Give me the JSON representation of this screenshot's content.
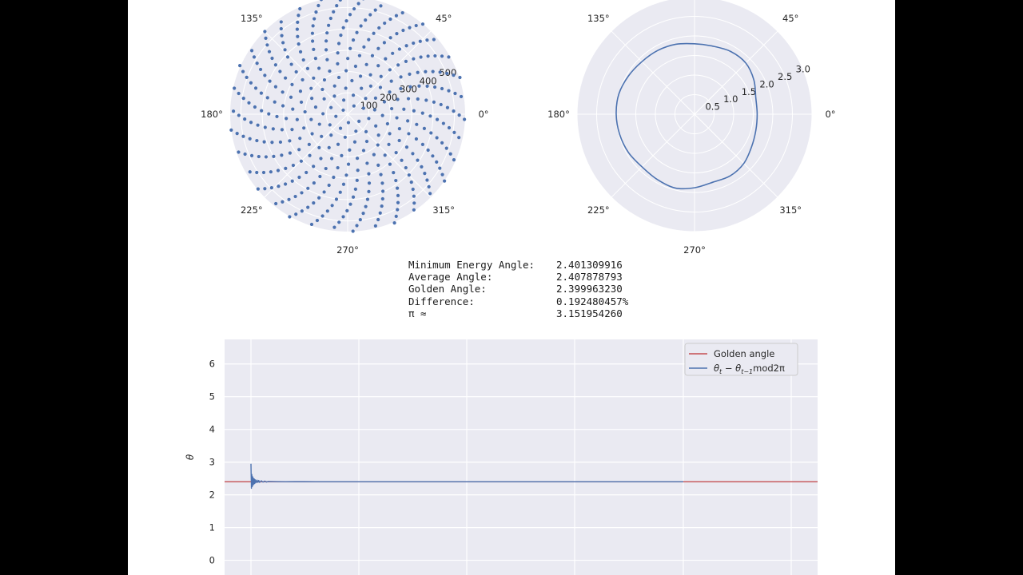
{
  "chart_data": [
    {
      "type": "scatter",
      "projection": "polar",
      "theta_tick_labels": [
        "0°",
        "45°",
        "90°",
        "135°",
        "180°",
        "225°",
        "270°",
        "315°"
      ],
      "r_tick_labels": [
        "100",
        "200",
        "300",
        "400",
        "500"
      ],
      "r_ticks": [
        100,
        200,
        300,
        400,
        500
      ],
      "rlim": [
        0,
        550
      ],
      "point_count": 392,
      "angle_step_rad": 2.401309916,
      "radius_rule": "r ≈ 28·sqrt(n), n = 1…392 (sunflower spiral)",
      "color": "#4c72b0",
      "grid": true,
      "background": "#eaeaf2"
    },
    {
      "type": "line",
      "projection": "polar",
      "theta_tick_labels": [
        "0°",
        "45°",
        "90°",
        "135°",
        "180°",
        "225°",
        "270°",
        "315°"
      ],
      "r_tick_labels": [
        "0.5",
        "1.0",
        "1.5",
        "2.0",
        "2.5",
        "3.0"
      ],
      "r_ticks": [
        0.5,
        1.0,
        1.5,
        2.0,
        2.5,
        3.0
      ],
      "rlim": [
        0,
        3.0
      ],
      "curve_theta_deg": [
        0,
        15,
        30,
        45,
        60,
        75,
        90,
        105,
        120,
        135,
        150,
        165,
        180,
        195,
        210,
        225,
        240,
        255,
        270,
        285,
        300,
        315,
        330,
        345,
        360
      ],
      "curve_r": [
        1.6,
        1.62,
        1.75,
        1.85,
        1.85,
        1.8,
        1.8,
        1.85,
        1.88,
        1.9,
        1.95,
        2.0,
        2.0,
        1.98,
        1.95,
        1.9,
        1.92,
        1.95,
        1.88,
        1.8,
        1.82,
        1.78,
        1.68,
        1.62,
        1.6
      ],
      "color": "#4c72b0",
      "grid": true,
      "background": "#eaeaf2"
    },
    {
      "type": "line",
      "ylabel": "θ",
      "ylim": [
        -0.45,
        6.75
      ],
      "y_ticks": [
        0,
        1,
        2,
        3,
        4,
        5,
        6
      ],
      "y_tick_labels": [
        "0",
        "1",
        "2",
        "3",
        "4",
        "5",
        "6"
      ],
      "legend": "top-right",
      "grid": true,
      "background": "#eaeaf2",
      "series": [
        {
          "name": "Golden angle",
          "color": "#c44e52",
          "kind": "horizontal",
          "y": 2.39996323
        },
        {
          "name": "θt − θt−1 mod2π",
          "legend_math": {
            "a": "θ",
            "a_sub": "t",
            "minus": " − ",
            "b": "θ",
            "b_sub": "t−1",
            "tail": "mod2π"
          },
          "color": "#4c72b0",
          "x": [
            0,
            1,
            2,
            3,
            4,
            5,
            6,
            7,
            8,
            9,
            10,
            12,
            14,
            16,
            18,
            20,
            24,
            28,
            32,
            36,
            40,
            60,
            80,
            100,
            150,
            200,
            300,
            400,
            500,
            600,
            700,
            800,
            900,
            1000
          ],
          "y": [
            2.95,
            2.2,
            2.62,
            2.25,
            2.55,
            2.3,
            2.5,
            2.33,
            2.48,
            2.35,
            2.46,
            2.37,
            2.45,
            2.38,
            2.44,
            2.38,
            2.43,
            2.39,
            2.42,
            2.39,
            2.41,
            2.405,
            2.4,
            2.405,
            2.4,
            2.402,
            2.4,
            2.401,
            2.4,
            2.401,
            2.4,
            2.401,
            2.4,
            2.401
          ]
        }
      ]
    }
  ],
  "stats": [
    {
      "label": "Minimum Energy Angle:",
      "value": "2.401309916"
    },
    {
      "label": "Average Angle:",
      "value": "2.407878793"
    },
    {
      "label": "Golden Angle:",
      "value": "2.399963230"
    },
    {
      "label": "Difference:",
      "value": "0.192480457%"
    },
    {
      "label": "π ≈",
      "value": "3.151954260"
    }
  ]
}
